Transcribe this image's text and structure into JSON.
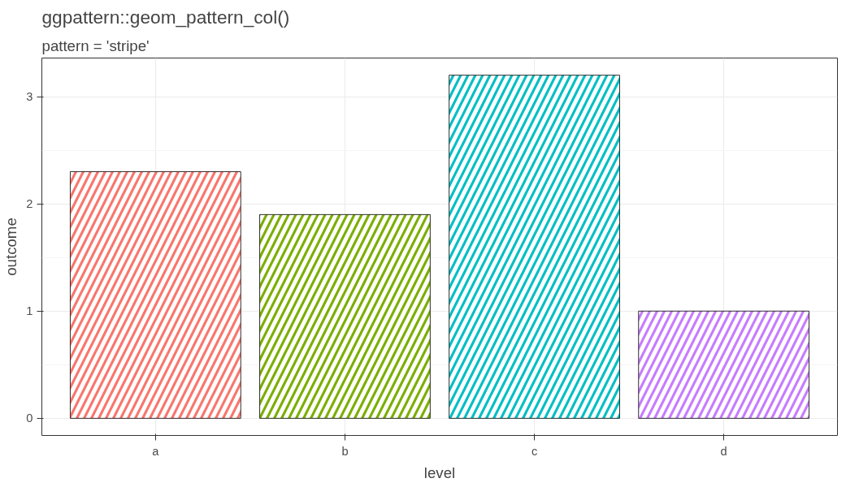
{
  "chart_data": {
    "type": "bar",
    "title": "ggpattern::geom_pattern_col()",
    "subtitle": "pattern = 'stripe'",
    "xlabel": "level",
    "ylabel": "outcome",
    "categories": [
      "a",
      "b",
      "c",
      "d"
    ],
    "values": [
      2.3,
      1.9,
      3.2,
      1.0
    ],
    "colors": [
      "#f8766d",
      "#7cae00",
      "#00bfc4",
      "#c77cff"
    ],
    "ylim": [
      -0.16,
      3.36
    ],
    "yticks": [
      0,
      1,
      2,
      3
    ],
    "grid": true
  }
}
